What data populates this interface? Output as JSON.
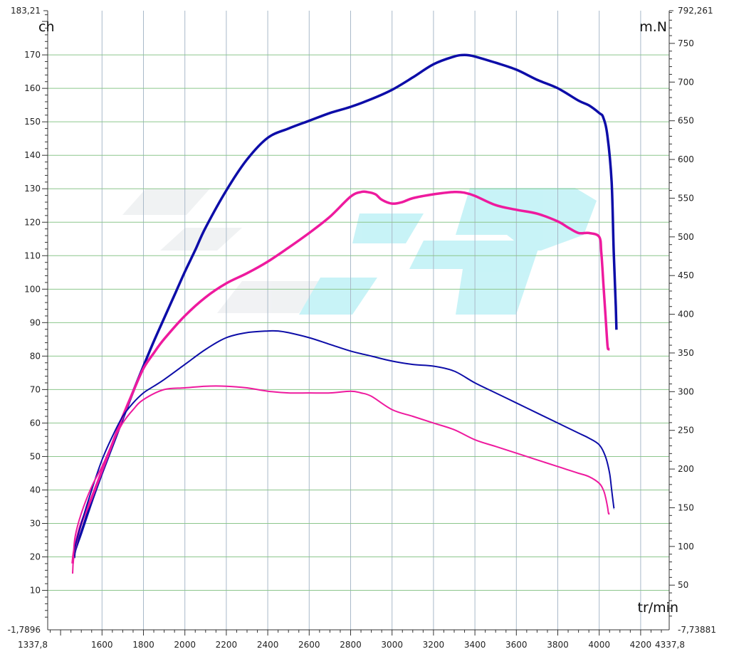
{
  "chart_data": {
    "type": "line",
    "xlabel": "tr/min",
    "ylabel_left": "ch",
    "ylabel_right": "m.N",
    "xlim": [
      1337.8,
      4337.8
    ],
    "ylim_left": [
      -1.7896,
      183.21
    ],
    "ylim_right": [
      -7.73881,
      792.261
    ],
    "x_ticks": [
      1600,
      1800,
      2000,
      2200,
      2400,
      2600,
      2800,
      3000,
      3200,
      3400,
      3600,
      3800,
      4000,
      4200
    ],
    "x_tick_labels": [
      "1600",
      "1800",
      "2000",
      "2200",
      "2400",
      "2600",
      "2800",
      "3000",
      "3200",
      "3400",
      "3600",
      "3800",
      "4000",
      "4200"
    ],
    "x_end_labels": [
      "1337,8",
      "4337,8"
    ],
    "y_left_ticks": [
      10,
      20,
      30,
      40,
      50,
      60,
      70,
      80,
      90,
      100,
      110,
      120,
      130,
      140,
      150,
      160,
      170
    ],
    "y_left_tick_labels": [
      "10",
      "20",
      "30",
      "40",
      "50",
      "60",
      "70",
      "80",
      "90",
      "100",
      "110",
      "120",
      "130",
      "140",
      "150",
      "160",
      "170"
    ],
    "y_left_end_labels": [
      "-1,7896",
      "183,21"
    ],
    "y_right_ticks": [
      50,
      100,
      150,
      200,
      250,
      300,
      350,
      400,
      450,
      500,
      550,
      600,
      650,
      700,
      750
    ],
    "y_right_tick_labels": [
      "50",
      "100",
      "150",
      "200",
      "250",
      "300",
      "350",
      "400",
      "450",
      "500",
      "550",
      "600",
      "650",
      "700",
      "750"
    ],
    "y_right_end_labels": [
      "-7,73881",
      "792,261"
    ],
    "grid": true,
    "watermark": true,
    "series": [
      {
        "color": "#0d0da8",
        "width": 3.5,
        "axis": "right",
        "x": [
          1465,
          1470,
          1500,
          1550,
          1600,
          1650,
          1700,
          1750,
          1800,
          1850,
          1900,
          1950,
          2000,
          2050,
          2100,
          2200,
          2300,
          2400,
          2500,
          2600,
          2700,
          2800,
          2900,
          3000,
          3100,
          3200,
          3300,
          3350,
          3400,
          3500,
          3600,
          3700,
          3800,
          3900,
          3950,
          4000,
          4020,
          4040,
          4060,
          4070,
          4080,
          4083
        ],
        "y": [
          85,
          95,
          118,
          158,
          195,
          230,
          265,
          300,
          333,
          365,
          395,
          425,
          455,
          483,
          512,
          560,
          600,
          628,
          640,
          650,
          660,
          668,
          678,
          690,
          706,
          723,
          733,
          735,
          733,
          725,
          716,
          703,
          692,
          676,
          670,
          660,
          654,
          630,
          570,
          480,
          410,
          380
        ]
      },
      {
        "color": "#ee1a9e",
        "width": 3.5,
        "axis": "right",
        "x": [
          1458,
          1462,
          1470,
          1500,
          1550,
          1600,
          1650,
          1700,
          1750,
          1800,
          1850,
          1900,
          2000,
          2100,
          2200,
          2300,
          2400,
          2500,
          2600,
          2700,
          2800,
          2850,
          2880,
          2920,
          2950,
          3000,
          3050,
          3100,
          3200,
          3300,
          3350,
          3400,
          3500,
          3600,
          3700,
          3800,
          3850,
          3900,
          3950,
          4000,
          4010,
          4020,
          4030,
          4040,
          4045,
          4050
        ],
        "y": [
          78,
          88,
          100,
          130,
          163,
          198,
          233,
          268,
          300,
          330,
          350,
          368,
          398,
          422,
          440,
          453,
          468,
          486,
          505,
          526,
          552,
          558,
          558,
          555,
          548,
          543,
          545,
          550,
          555,
          558,
          557,
          553,
          541,
          535,
          530,
          520,
          512,
          505,
          505,
          500,
          480,
          440,
          400,
          360,
          355,
          355
        ]
      },
      {
        "color": "#0d0da8",
        "width": 2,
        "axis": "left",
        "x": [
          1465,
          1470,
          1500,
          1550,
          1600,
          1650,
          1700,
          1750,
          1800,
          1850,
          1900,
          2000,
          2100,
          2200,
          2300,
          2400,
          2450,
          2500,
          2600,
          2700,
          2800,
          2900,
          3000,
          3100,
          3200,
          3300,
          3400,
          3500,
          3600,
          3700,
          3800,
          3900,
          3950,
          4000,
          4030,
          4050,
          4060,
          4070,
          4072
        ],
        "y": [
          20,
          23,
          30,
          40,
          49,
          56,
          62,
          66,
          69,
          71,
          73,
          77.5,
          82,
          85.5,
          87,
          87.5,
          87.5,
          87,
          85.5,
          83.5,
          81.5,
          80,
          78.5,
          77.5,
          77,
          75.5,
          72,
          69,
          66,
          63,
          60,
          57,
          55.5,
          53.5,
          50,
          45,
          40,
          35,
          34.5
        ]
      },
      {
        "color": "#ee1a9e",
        "width": 2,
        "axis": "left",
        "x": [
          1458,
          1462,
          1470,
          1500,
          1550,
          1600,
          1650,
          1700,
          1750,
          1800,
          1900,
          2000,
          2100,
          2200,
          2300,
          2400,
          2500,
          2600,
          2700,
          2800,
          2850,
          2900,
          3000,
          3100,
          3200,
          3300,
          3400,
          3500,
          3600,
          3700,
          3800,
          3850,
          3900,
          3950,
          4000,
          4020,
          4030,
          4040,
          4045,
          4050
        ],
        "y": [
          15,
          20,
          26,
          33,
          41,
          47,
          54,
          60,
          64,
          67,
          70,
          70.5,
          71,
          71,
          70.5,
          69.5,
          69,
          69,
          69,
          69.5,
          69,
          68,
          64,
          62,
          60,
          58,
          55,
          53,
          51,
          49,
          47,
          46,
          45,
          44,
          42,
          40,
          38,
          35,
          33,
          33
        ]
      }
    ]
  }
}
